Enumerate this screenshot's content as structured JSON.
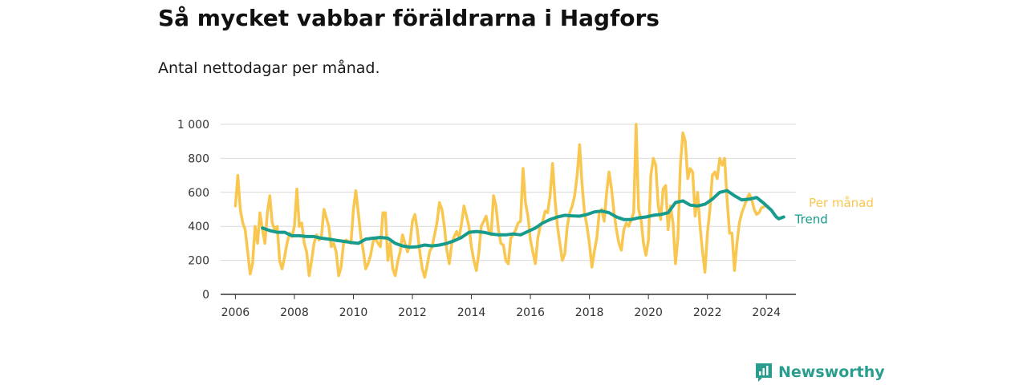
{
  "title": "Så mycket vabbar föräldrarna i Hagfors",
  "subtitle": "Antal nettodagar per månad.",
  "brand": "Newsworthy",
  "colors": {
    "per_month": "#f9c74f",
    "trend": "#169b8c",
    "grid": "#d9d9d9",
    "brand": "#2a9d8f"
  },
  "chart_data": {
    "type": "line",
    "x_ticks": [
      "2006",
      "2008",
      "2010",
      "2012",
      "2014",
      "2016",
      "2018",
      "2020",
      "2022",
      "2024"
    ],
    "y_ticks": [
      "0",
      "200",
      "400",
      "600",
      "800",
      "1 000"
    ],
    "ylim": [
      0,
      1000
    ],
    "xlim": [
      "2005-07",
      "2025-01"
    ],
    "series": [
      {
        "name": "Per månad",
        "points": [
          [
            "2006-01",
            520
          ],
          [
            "2006-02",
            700
          ],
          [
            "2006-03",
            500
          ],
          [
            "2006-04",
            420
          ],
          [
            "2006-05",
            380
          ],
          [
            "2006-06",
            250
          ],
          [
            "2006-07",
            120
          ],
          [
            "2006-08",
            180
          ],
          [
            "2006-09",
            400
          ],
          [
            "2006-10",
            300
          ],
          [
            "2006-11",
            480
          ],
          [
            "2006-12",
            380
          ],
          [
            "2007-01",
            300
          ],
          [
            "2007-02",
            480
          ],
          [
            "2007-03",
            580
          ],
          [
            "2007-04",
            420
          ],
          [
            "2007-05",
            380
          ],
          [
            "2007-06",
            400
          ],
          [
            "2007-07",
            200
          ],
          [
            "2007-08",
            150
          ],
          [
            "2007-09",
            220
          ],
          [
            "2007-10",
            300
          ],
          [
            "2007-11",
            360
          ],
          [
            "2007-12",
            340
          ],
          [
            "2008-01",
            400
          ],
          [
            "2008-02",
            620
          ],
          [
            "2008-03",
            400
          ],
          [
            "2008-04",
            420
          ],
          [
            "2008-05",
            300
          ],
          [
            "2008-06",
            250
          ],
          [
            "2008-07",
            110
          ],
          [
            "2008-08",
            200
          ],
          [
            "2008-09",
            300
          ],
          [
            "2008-10",
            350
          ],
          [
            "2008-11",
            320
          ],
          [
            "2008-12",
            340
          ],
          [
            "2009-01",
            500
          ],
          [
            "2009-02",
            450
          ],
          [
            "2009-03",
            400
          ],
          [
            "2009-04",
            280
          ],
          [
            "2009-05",
            300
          ],
          [
            "2009-06",
            250
          ],
          [
            "2009-07",
            110
          ],
          [
            "2009-08",
            160
          ],
          [
            "2009-09",
            300
          ],
          [
            "2009-10",
            320
          ],
          [
            "2009-11",
            310
          ],
          [
            "2009-12",
            300
          ],
          [
            "2010-01",
            500
          ],
          [
            "2010-02",
            610
          ],
          [
            "2010-03",
            480
          ],
          [
            "2010-04",
            340
          ],
          [
            "2010-05",
            260
          ],
          [
            "2010-06",
            150
          ],
          [
            "2010-07",
            180
          ],
          [
            "2010-08",
            230
          ],
          [
            "2010-09",
            310
          ],
          [
            "2010-10",
            330
          ],
          [
            "2010-11",
            300
          ],
          [
            "2010-12",
            280
          ],
          [
            "2011-01",
            480
          ],
          [
            "2011-02",
            480
          ],
          [
            "2011-03",
            200
          ],
          [
            "2011-04",
            300
          ],
          [
            "2011-05",
            150
          ],
          [
            "2011-06",
            110
          ],
          [
            "2011-07",
            190
          ],
          [
            "2011-08",
            250
          ],
          [
            "2011-09",
            350
          ],
          [
            "2011-10",
            300
          ],
          [
            "2011-11",
            250
          ],
          [
            "2011-12",
            300
          ],
          [
            "2012-01",
            430
          ],
          [
            "2012-02",
            470
          ],
          [
            "2012-03",
            380
          ],
          [
            "2012-04",
            250
          ],
          [
            "2012-05",
            150
          ],
          [
            "2012-06",
            100
          ],
          [
            "2012-07",
            170
          ],
          [
            "2012-08",
            250
          ],
          [
            "2012-09",
            280
          ],
          [
            "2012-10",
            350
          ],
          [
            "2012-11",
            420
          ],
          [
            "2012-12",
            540
          ],
          [
            "2013-01",
            500
          ],
          [
            "2013-02",
            400
          ],
          [
            "2013-03",
            260
          ],
          [
            "2013-04",
            180
          ],
          [
            "2013-05",
            300
          ],
          [
            "2013-06",
            340
          ],
          [
            "2013-07",
            370
          ],
          [
            "2013-08",
            330
          ],
          [
            "2013-09",
            420
          ],
          [
            "2013-10",
            520
          ],
          [
            "2013-11",
            460
          ],
          [
            "2013-12",
            400
          ],
          [
            "2014-01",
            280
          ],
          [
            "2014-02",
            200
          ],
          [
            "2014-03",
            140
          ],
          [
            "2014-04",
            240
          ],
          [
            "2014-05",
            400
          ],
          [
            "2014-06",
            430
          ],
          [
            "2014-07",
            460
          ],
          [
            "2014-08",
            380
          ],
          [
            "2014-09",
            350
          ],
          [
            "2014-10",
            580
          ],
          [
            "2014-11",
            520
          ],
          [
            "2014-12",
            380
          ],
          [
            "2015-01",
            300
          ],
          [
            "2015-02",
            290
          ],
          [
            "2015-03",
            200
          ],
          [
            "2015-04",
            180
          ],
          [
            "2015-05",
            330
          ],
          [
            "2015-06",
            350
          ],
          [
            "2015-07",
            380
          ],
          [
            "2015-08",
            420
          ],
          [
            "2015-09",
            430
          ],
          [
            "2015-10",
            740
          ],
          [
            "2015-11",
            540
          ],
          [
            "2015-12",
            460
          ],
          [
            "2016-01",
            320
          ],
          [
            "2016-02",
            250
          ],
          [
            "2016-03",
            180
          ],
          [
            "2016-04",
            330
          ],
          [
            "2016-05",
            400
          ],
          [
            "2016-06",
            430
          ],
          [
            "2016-07",
            490
          ],
          [
            "2016-08",
            480
          ],
          [
            "2016-09",
            580
          ],
          [
            "2016-10",
            770
          ],
          [
            "2016-11",
            560
          ],
          [
            "2016-12",
            400
          ],
          [
            "2017-01",
            300
          ],
          [
            "2017-02",
            200
          ],
          [
            "2017-03",
            240
          ],
          [
            "2017-04",
            400
          ],
          [
            "2017-05",
            480
          ],
          [
            "2017-06",
            520
          ],
          [
            "2017-07",
            580
          ],
          [
            "2017-08",
            700
          ],
          [
            "2017-09",
            880
          ],
          [
            "2017-10",
            650
          ],
          [
            "2017-11",
            480
          ],
          [
            "2017-12",
            400
          ],
          [
            "2018-01",
            300
          ],
          [
            "2018-02",
            160
          ],
          [
            "2018-03",
            250
          ],
          [
            "2018-04",
            330
          ],
          [
            "2018-05",
            480
          ],
          [
            "2018-06",
            500
          ],
          [
            "2018-07",
            430
          ],
          [
            "2018-08",
            600
          ],
          [
            "2018-09",
            720
          ],
          [
            "2018-10",
            620
          ],
          [
            "2018-11",
            480
          ],
          [
            "2018-12",
            380
          ],
          [
            "2019-01",
            300
          ],
          [
            "2019-02",
            260
          ],
          [
            "2019-03",
            380
          ],
          [
            "2019-04",
            420
          ],
          [
            "2019-05",
            400
          ],
          [
            "2019-06",
            440
          ],
          [
            "2019-07",
            480
          ],
          [
            "2019-08",
            1000
          ],
          [
            "2019-09",
            500
          ],
          [
            "2019-10",
            440
          ],
          [
            "2019-11",
            300
          ],
          [
            "2019-12",
            230
          ],
          [
            "2020-01",
            320
          ],
          [
            "2020-02",
            700
          ],
          [
            "2020-03",
            800
          ],
          [
            "2020-04",
            760
          ],
          [
            "2020-05",
            520
          ],
          [
            "2020-06",
            440
          ],
          [
            "2020-07",
            620
          ],
          [
            "2020-08",
            640
          ],
          [
            "2020-09",
            380
          ],
          [
            "2020-10",
            520
          ],
          [
            "2020-11",
            420
          ],
          [
            "2020-12",
            180
          ],
          [
            "2021-01",
            330
          ],
          [
            "2021-02",
            760
          ],
          [
            "2021-03",
            950
          ],
          [
            "2021-04",
            900
          ],
          [
            "2021-05",
            680
          ],
          [
            "2021-06",
            740
          ],
          [
            "2021-07",
            720
          ],
          [
            "2021-08",
            460
          ],
          [
            "2021-09",
            600
          ],
          [
            "2021-10",
            400
          ],
          [
            "2021-11",
            250
          ],
          [
            "2021-12",
            130
          ],
          [
            "2022-01",
            360
          ],
          [
            "2022-02",
            500
          ],
          [
            "2022-03",
            700
          ],
          [
            "2022-04",
            720
          ],
          [
            "2022-05",
            680
          ],
          [
            "2022-06",
            800
          ],
          [
            "2022-07",
            760
          ],
          [
            "2022-08",
            800
          ],
          [
            "2022-09",
            560
          ],
          [
            "2022-10",
            360
          ],
          [
            "2022-11",
            360
          ],
          [
            "2022-12",
            140
          ],
          [
            "2023-01",
            300
          ],
          [
            "2023-02",
            420
          ],
          [
            "2023-03",
            480
          ],
          [
            "2023-04",
            520
          ],
          [
            "2023-05",
            560
          ],
          [
            "2023-06",
            590
          ],
          [
            "2023-07",
            560
          ],
          [
            "2023-08",
            500
          ],
          [
            "2023-09",
            470
          ],
          [
            "2023-10",
            480
          ],
          [
            "2023-11",
            510
          ],
          [
            "2023-12",
            515
          ]
        ]
      },
      {
        "name": "Trend",
        "points": [
          [
            "2006-12",
            390
          ],
          [
            "2007-03",
            375
          ],
          [
            "2007-06",
            365
          ],
          [
            "2007-09",
            365
          ],
          [
            "2007-12",
            345
          ],
          [
            "2008-03",
            345
          ],
          [
            "2008-06",
            340
          ],
          [
            "2008-09",
            340
          ],
          [
            "2008-12",
            330
          ],
          [
            "2009-03",
            325
          ],
          [
            "2009-06",
            318
          ],
          [
            "2009-09",
            312
          ],
          [
            "2009-12",
            305
          ],
          [
            "2010-03",
            300
          ],
          [
            "2010-06",
            325
          ],
          [
            "2010-09",
            330
          ],
          [
            "2010-12",
            335
          ],
          [
            "2011-03",
            330
          ],
          [
            "2011-06",
            300
          ],
          [
            "2011-09",
            285
          ],
          [
            "2011-12",
            278
          ],
          [
            "2012-03",
            280
          ],
          [
            "2012-06",
            290
          ],
          [
            "2012-09",
            285
          ],
          [
            "2012-12",
            290
          ],
          [
            "2013-03",
            300
          ],
          [
            "2013-06",
            315
          ],
          [
            "2013-09",
            335
          ],
          [
            "2013-12",
            365
          ],
          [
            "2014-03",
            370
          ],
          [
            "2014-06",
            365
          ],
          [
            "2014-09",
            355
          ],
          [
            "2014-12",
            350
          ],
          [
            "2015-03",
            350
          ],
          [
            "2015-06",
            355
          ],
          [
            "2015-09",
            350
          ],
          [
            "2015-12",
            370
          ],
          [
            "2016-03",
            390
          ],
          [
            "2016-06",
            420
          ],
          [
            "2016-09",
            440
          ],
          [
            "2016-12",
            455
          ],
          [
            "2017-03",
            465
          ],
          [
            "2017-06",
            462
          ],
          [
            "2017-09",
            460
          ],
          [
            "2017-12",
            470
          ],
          [
            "2018-03",
            485
          ],
          [
            "2018-06",
            490
          ],
          [
            "2018-09",
            480
          ],
          [
            "2018-12",
            455
          ],
          [
            "2019-03",
            440
          ],
          [
            "2019-06",
            440
          ],
          [
            "2019-09",
            450
          ],
          [
            "2019-12",
            455
          ],
          [
            "2020-03",
            465
          ],
          [
            "2020-06",
            470
          ],
          [
            "2020-09",
            480
          ],
          [
            "2020-12",
            540
          ],
          [
            "2021-03",
            550
          ],
          [
            "2021-06",
            525
          ],
          [
            "2021-09",
            520
          ],
          [
            "2021-12",
            530
          ],
          [
            "2022-03",
            560
          ],
          [
            "2022-06",
            600
          ],
          [
            "2022-09",
            610
          ],
          [
            "2022-12",
            580
          ],
          [
            "2023-03",
            555
          ],
          [
            "2023-06",
            560
          ],
          [
            "2023-09",
            570
          ],
          [
            "2023-12",
            535
          ],
          [
            "2024-03",
            495
          ],
          [
            "2024-05",
            455
          ],
          [
            "2024-06",
            445
          ],
          [
            "2024-08",
            455
          ]
        ]
      }
    ]
  }
}
